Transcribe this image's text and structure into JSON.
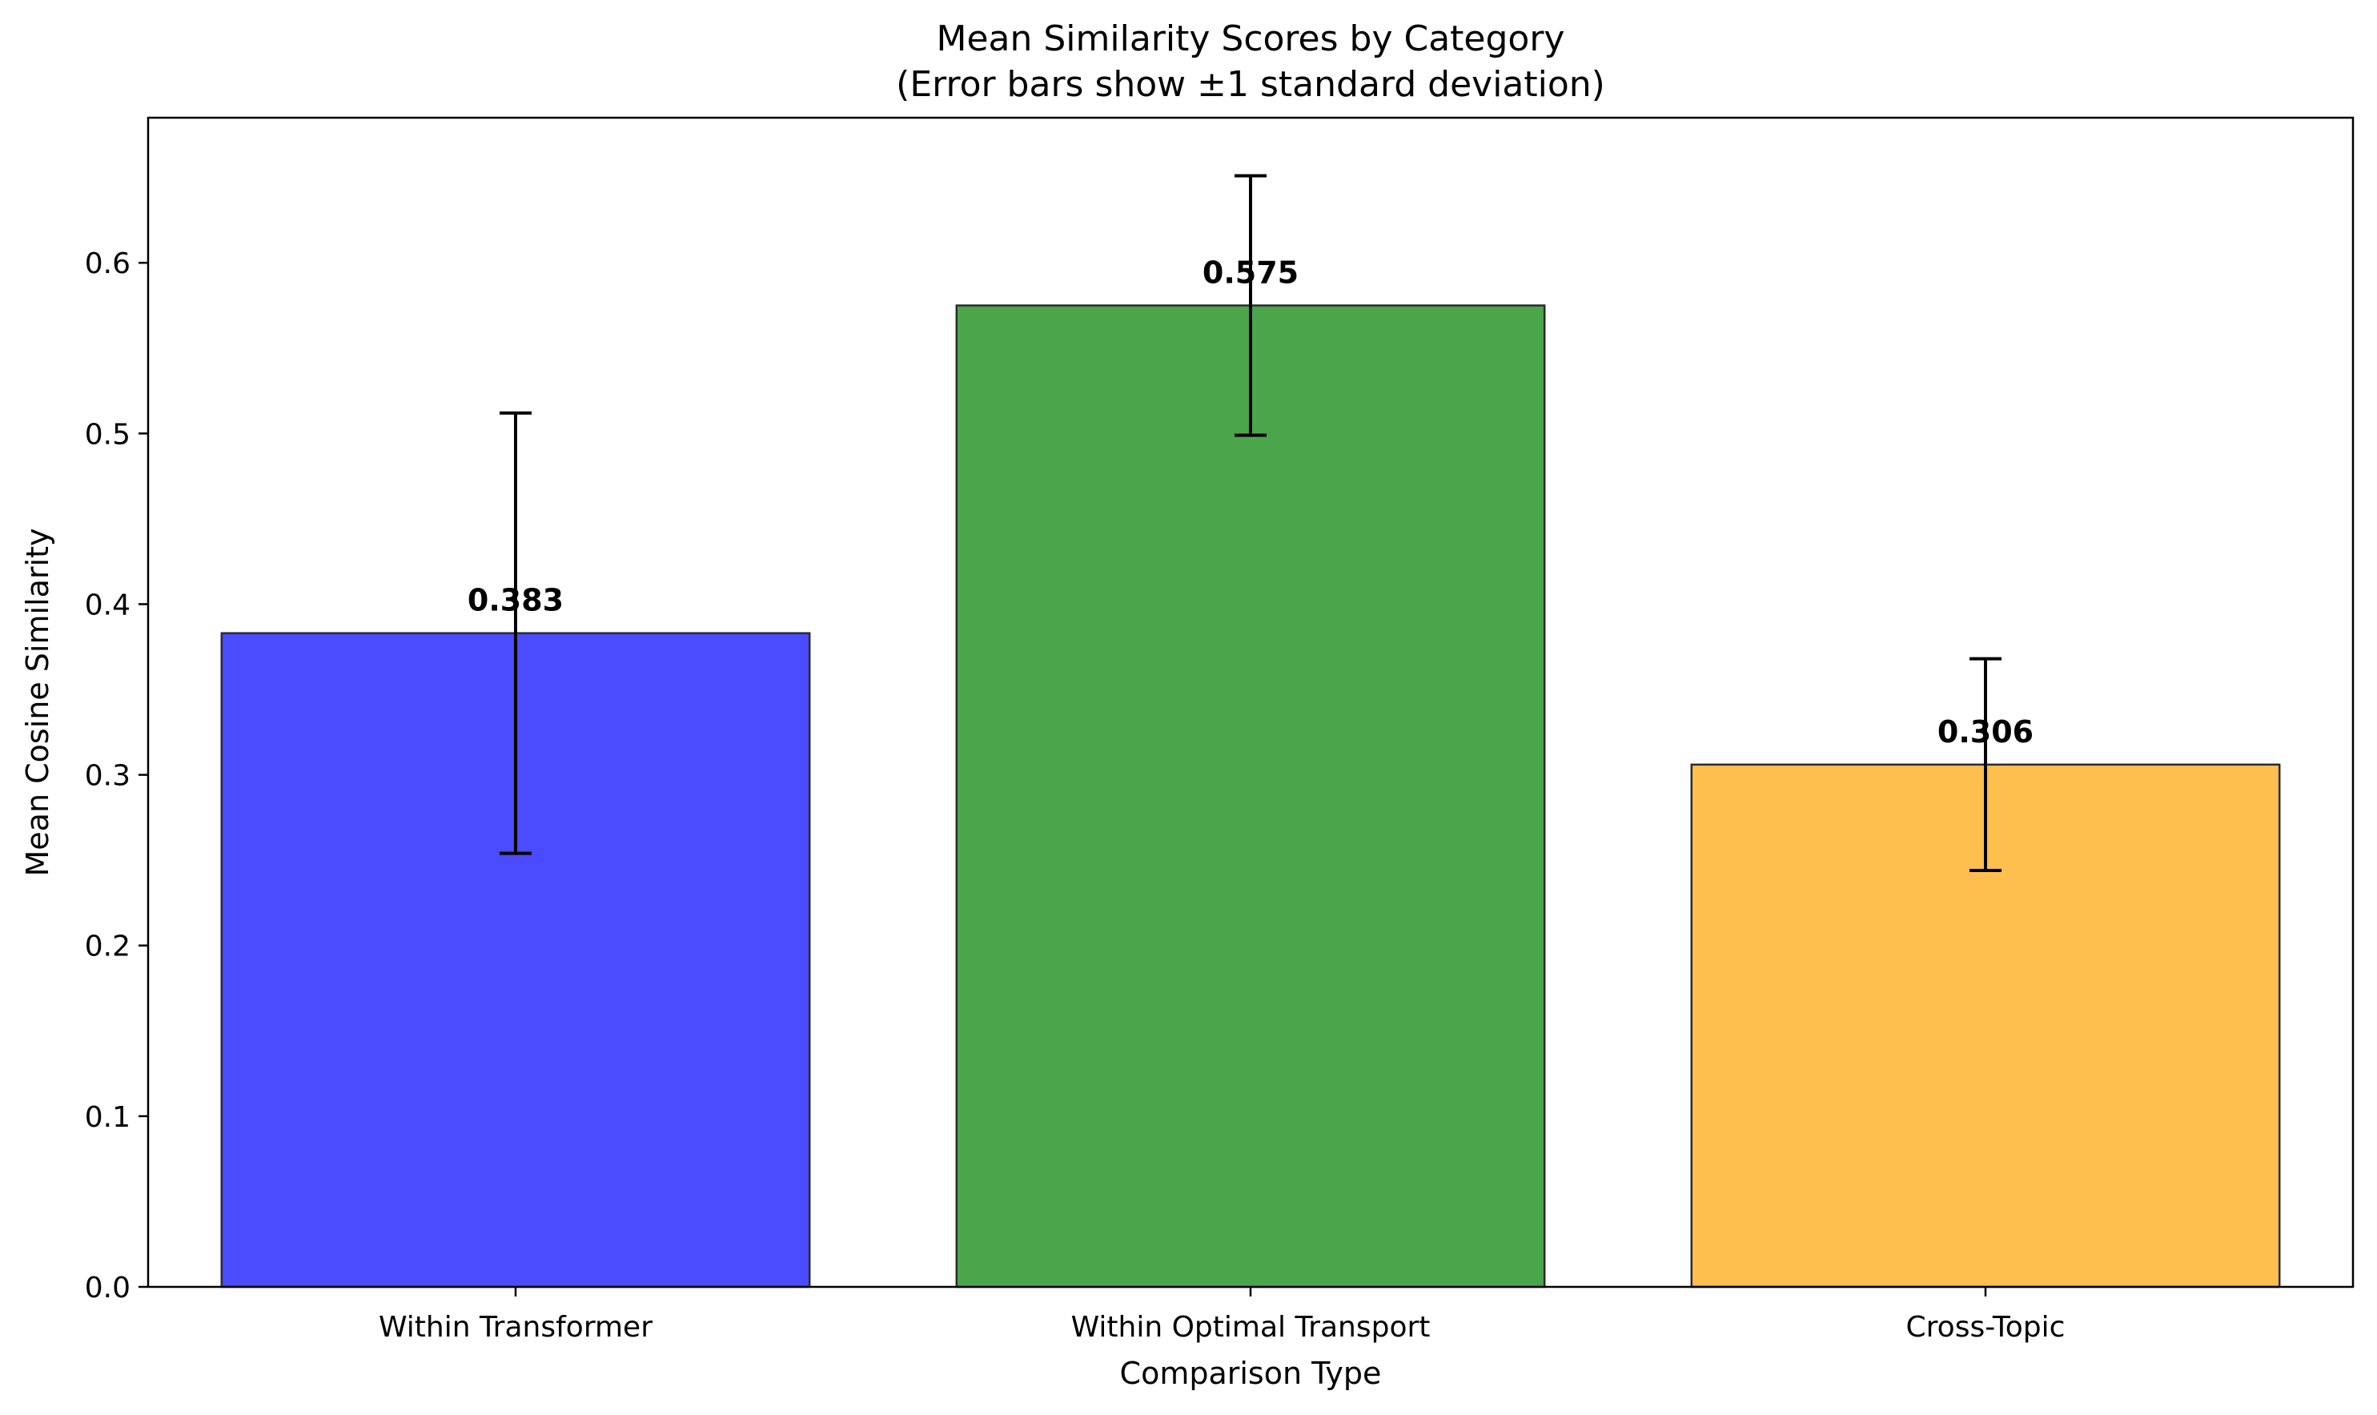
{
  "chart_data": {
    "type": "bar",
    "title": "Mean Similarity Scores by Category",
    "subtitle": "(Error bars show ±1 standard deviation)",
    "xlabel": "Comparison Type",
    "ylabel": "Mean Cosine Similarity",
    "categories": [
      "Within Transformer",
      "Within Optimal Transport",
      "Cross-Topic"
    ],
    "values": [
      0.383,
      0.575,
      0.306
    ],
    "value_labels": [
      "0.383",
      "0.575",
      "0.306"
    ],
    "error": [
      0.129,
      0.076,
      0.062
    ],
    "colors": [
      "#4b4bff",
      "#4ba64b",
      "#ffbf4f"
    ],
    "ylim": [
      0,
      0.685
    ],
    "yticks": [
      0.0,
      0.1,
      0.2,
      0.3,
      0.4,
      0.5,
      0.6
    ],
    "ytick_labels": [
      "0.0",
      "0.1",
      "0.2",
      "0.3",
      "0.4",
      "0.5",
      "0.6"
    ],
    "grid": false,
    "legend": "none"
  }
}
